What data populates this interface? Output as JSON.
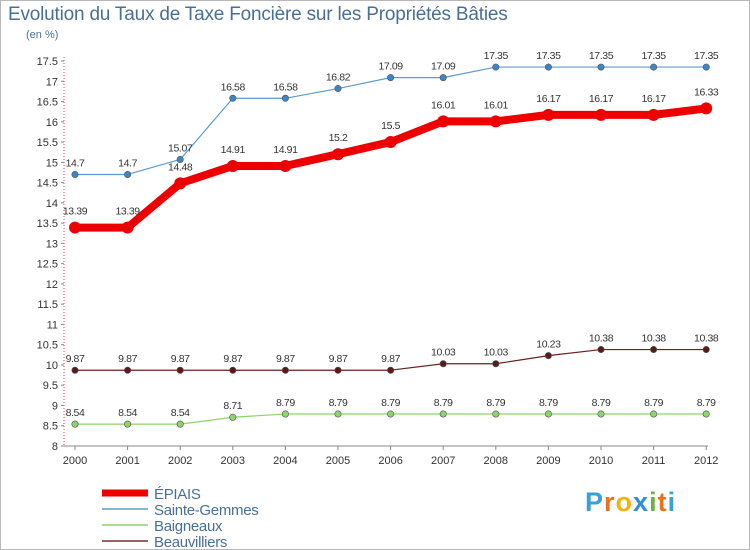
{
  "title": "Evolution du Taux de Taxe Foncière sur les Propriétés Bâties",
  "unit_label": "(en %)",
  "logo": {
    "text": "Proxiti",
    "letter_colors": [
      "#3aa0d8",
      "#e8731e",
      "#f2b30f",
      "#2f8fd0",
      "#6cb33f",
      "#e8731e",
      "#3aa0d8"
    ]
  },
  "chart_data": {
    "type": "line",
    "title": "Evolution du Taux de Taxe Foncière sur les Propriétés Bâties",
    "ylabel": "(en %)",
    "xlabel": "",
    "x": [
      "2000",
      "2001",
      "2002",
      "2003",
      "2004",
      "2005",
      "2006",
      "2007",
      "2008",
      "2009",
      "2010",
      "2011",
      "2012"
    ],
    "ylim": [
      8,
      17.5
    ],
    "yticks": [
      "8",
      "8.5",
      "9",
      "9.5",
      "10",
      "10.5",
      "11",
      "11.5",
      "12",
      "12.5",
      "13",
      "13.5",
      "14",
      "14.5",
      "15",
      "15.5",
      "16",
      "16.5",
      "17",
      "17.5"
    ],
    "grid": false,
    "legend_position": "bottom-left",
    "series": [
      {
        "name": "ÉPIAIS",
        "color": "#ee0000",
        "emphasis": true,
        "values": [
          13.39,
          13.39,
          14.48,
          14.91,
          14.91,
          15.2,
          15.5,
          16.01,
          16.01,
          16.17,
          16.17,
          16.17,
          16.33
        ],
        "labels": [
          "13.39",
          "13.39",
          "14.48",
          "14.91",
          "14.91",
          "15.2",
          "15.5",
          "16.01",
          "16.01",
          "16.17",
          "16.17",
          "16.17",
          "16.33"
        ]
      },
      {
        "name": "Sainte-Gemmes",
        "color": "#5b9bd5",
        "values": [
          14.7,
          14.7,
          15.07,
          16.58,
          16.58,
          16.82,
          17.09,
          17.09,
          17.35,
          17.35,
          17.35,
          17.35,
          17.35
        ],
        "labels": [
          "14.7",
          "14.7",
          "15.07",
          "16.58",
          "16.58",
          "16.82",
          "17.09",
          "17.09",
          "17.35",
          "17.35",
          "17.35",
          "17.35",
          "17.35"
        ]
      },
      {
        "name": "Baigneaux",
        "color": "#8ed46a",
        "values": [
          8.54,
          8.54,
          8.54,
          8.71,
          8.79,
          8.79,
          8.79,
          8.79,
          8.79,
          8.79,
          8.79,
          8.79,
          8.79
        ],
        "labels": [
          "8.54",
          "8.54",
          "8.54",
          "8.71",
          "8.79",
          "8.79",
          "8.79",
          "8.79",
          "8.79",
          "8.79",
          "8.79",
          "8.79",
          "8.79"
        ]
      },
      {
        "name": "Beauvilliers",
        "color": "#7b2f2f",
        "values": [
          9.87,
          9.87,
          9.87,
          9.87,
          9.87,
          9.87,
          9.87,
          10.03,
          10.03,
          10.23,
          10.38,
          10.38,
          10.38
        ],
        "labels": [
          "9.87",
          "9.87",
          "9.87",
          "9.87",
          "9.87",
          "9.87",
          "9.87",
          "10.03",
          "10.03",
          "10.23",
          "10.38",
          "10.38",
          "10.38"
        ]
      }
    ]
  }
}
